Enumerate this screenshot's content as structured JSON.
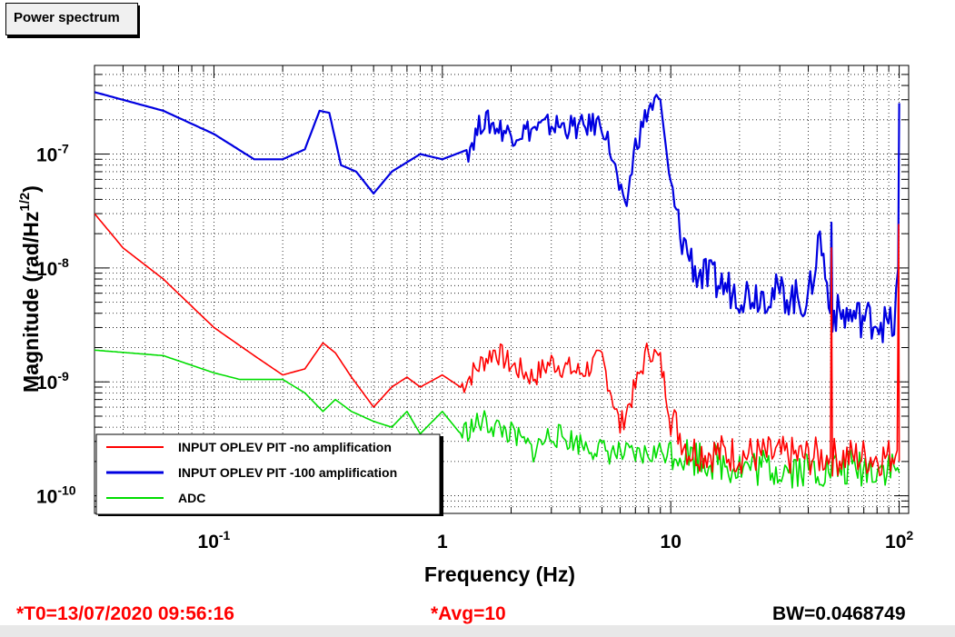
{
  "title": "Power spectrum",
  "status": {
    "t0": "*T0=13/07/2020 09:56:16",
    "avg": "*Avg=10",
    "bw": "BW=0.0468749"
  },
  "colors": {
    "red": "#ff0000",
    "blue": "#0000e0",
    "green": "#00dd00"
  },
  "chart_data": {
    "type": "line",
    "xlabel": "Frequency (Hz)",
    "ylabel_main": "Magnitude (rad/Hz",
    "ylabel_sup": "1/2",
    "ylabel_end": ")",
    "xscale": "log",
    "yscale": "log",
    "xlim": [
      0.03,
      110
    ],
    "ylim": [
      7e-11,
      6e-07
    ],
    "grid": true,
    "legend_position": "bottom-left",
    "x_ticks": [
      {
        "value": 0.1,
        "base": "10",
        "exp": "-1"
      },
      {
        "value": 1,
        "base": "1",
        "exp": ""
      },
      {
        "value": 10,
        "base": "10",
        "exp": ""
      },
      {
        "value": 100,
        "base": "10",
        "exp": "2"
      }
    ],
    "y_ticks": [
      {
        "value": 1e-10,
        "base": "10",
        "exp": "-10"
      },
      {
        "value": 1e-09,
        "base": "10",
        "exp": "-9"
      },
      {
        "value": 1e-08,
        "base": "10",
        "exp": "-8"
      },
      {
        "value": 1e-07,
        "base": "10",
        "exp": "-7"
      }
    ],
    "series": [
      {
        "name": "INPUT OPLEV PIT -no amplification",
        "color": "#ff0000",
        "points": [
          [
            0.03,
            3e-08
          ],
          [
            0.04,
            1.5e-08
          ],
          [
            0.06,
            8e-09
          ],
          [
            0.1,
            3e-09
          ],
          [
            0.15,
            1.7e-09
          ],
          [
            0.2,
            1.15e-09
          ],
          [
            0.25,
            1.3e-09
          ],
          [
            0.3,
            2.2e-09
          ],
          [
            0.34,
            1.8e-09
          ],
          [
            0.4,
            1.1e-09
          ],
          [
            0.5,
            6e-10
          ],
          [
            0.6,
            9e-10
          ],
          [
            0.7,
            1.1e-09
          ],
          [
            0.8,
            9e-10
          ],
          [
            1.0,
            1.15e-09
          ],
          [
            1.2,
            9e-10
          ],
          [
            1.5,
            1.5e-09
          ],
          [
            1.7,
            1.9e-09
          ],
          [
            2.0,
            1.4e-09
          ],
          [
            2.5,
            1.1e-09
          ],
          [
            3.0,
            1.5e-09
          ],
          [
            4.0,
            1.2e-09
          ],
          [
            5.0,
            1.6e-09
          ],
          [
            5.5,
            8e-10
          ],
          [
            6.0,
            4e-10
          ],
          [
            7.0,
            9e-10
          ],
          [
            8.0,
            2e-09
          ],
          [
            9.0,
            1.5e-09
          ],
          [
            10.0,
            5e-10
          ],
          [
            12.0,
            2.5e-10
          ],
          [
            20.0,
            2.3e-10
          ],
          [
            40.0,
            2.2e-10
          ],
          [
            50.0,
            2.2e-10
          ],
          [
            50.5,
            1.5e-08
          ],
          [
            51.0,
            2.2e-10
          ],
          [
            90.0,
            2.2e-10
          ],
          [
            98.0,
            2.5e-10
          ],
          [
            99.5,
            2.4e-08
          ],
          [
            100,
            2e-10
          ]
        ]
      },
      {
        "name": "INPUT OPLEV PIT -100 amplification",
        "color": "#0000e0",
        "points": [
          [
            0.03,
            3.5e-07
          ],
          [
            0.06,
            2.4e-07
          ],
          [
            0.1,
            1.5e-07
          ],
          [
            0.15,
            9e-08
          ],
          [
            0.2,
            9e-08
          ],
          [
            0.25,
            1.1e-07
          ],
          [
            0.29,
            2.4e-07
          ],
          [
            0.32,
            2.3e-07
          ],
          [
            0.36,
            8e-08
          ],
          [
            0.42,
            7e-08
          ],
          [
            0.5,
            4.5e-08
          ],
          [
            0.6,
            7e-08
          ],
          [
            0.8,
            1e-07
          ],
          [
            1.0,
            9e-08
          ],
          [
            1.3,
            1.1e-07
          ],
          [
            1.5,
            2e-07
          ],
          [
            2.0,
            1.5e-07
          ],
          [
            3.0,
            1.8e-07
          ],
          [
            4.0,
            1.7e-07
          ],
          [
            5.0,
            1.9e-07
          ],
          [
            5.5,
            1e-07
          ],
          [
            6.3,
            3e-08
          ],
          [
            7.0,
            1.2e-07
          ],
          [
            8.0,
            2.5e-07
          ],
          [
            9.0,
            3e-07
          ],
          [
            10.0,
            5e-08
          ],
          [
            11.0,
            2e-08
          ],
          [
            13.0,
            9e-09
          ],
          [
            20.0,
            6e-09
          ],
          [
            30.0,
            6e-09
          ],
          [
            40.0,
            5e-09
          ],
          [
            45.0,
            2e-08
          ],
          [
            50.0,
            4e-09
          ],
          [
            50.5,
            2.5e-08
          ],
          [
            51.0,
            4e-09
          ],
          [
            80.0,
            3.5e-09
          ],
          [
            95.0,
            3e-09
          ],
          [
            99.0,
            1e-08
          ],
          [
            100,
            2.8e-07
          ]
        ]
      },
      {
        "name": "ADC",
        "color": "#00dd00",
        "points": [
          [
            0.03,
            1.9e-09
          ],
          [
            0.06,
            1.7e-09
          ],
          [
            0.1,
            1.2e-09
          ],
          [
            0.13,
            1.05e-09
          ],
          [
            0.2,
            1.05e-09
          ],
          [
            0.25,
            8e-10
          ],
          [
            0.3,
            5.5e-10
          ],
          [
            0.34,
            7e-10
          ],
          [
            0.4,
            5.5e-10
          ],
          [
            0.5,
            4.5e-10
          ],
          [
            0.6,
            4e-10
          ],
          [
            0.7,
            5.5e-10
          ],
          [
            0.8,
            3.5e-10
          ],
          [
            1.0,
            5.5e-10
          ],
          [
            1.2,
            3.5e-10
          ],
          [
            1.5,
            4.5e-10
          ],
          [
            2.0,
            3.5e-10
          ],
          [
            2.5,
            2.5e-10
          ],
          [
            3.0,
            3.5e-10
          ],
          [
            5.0,
            2.5e-10
          ],
          [
            7.0,
            2.2e-10
          ],
          [
            10.0,
            2.5e-10
          ],
          [
            20.0,
            1.8e-10
          ],
          [
            50.0,
            1.7e-10
          ],
          [
            90.0,
            1.8e-10
          ],
          [
            100,
            1.6e-10
          ]
        ]
      }
    ]
  }
}
